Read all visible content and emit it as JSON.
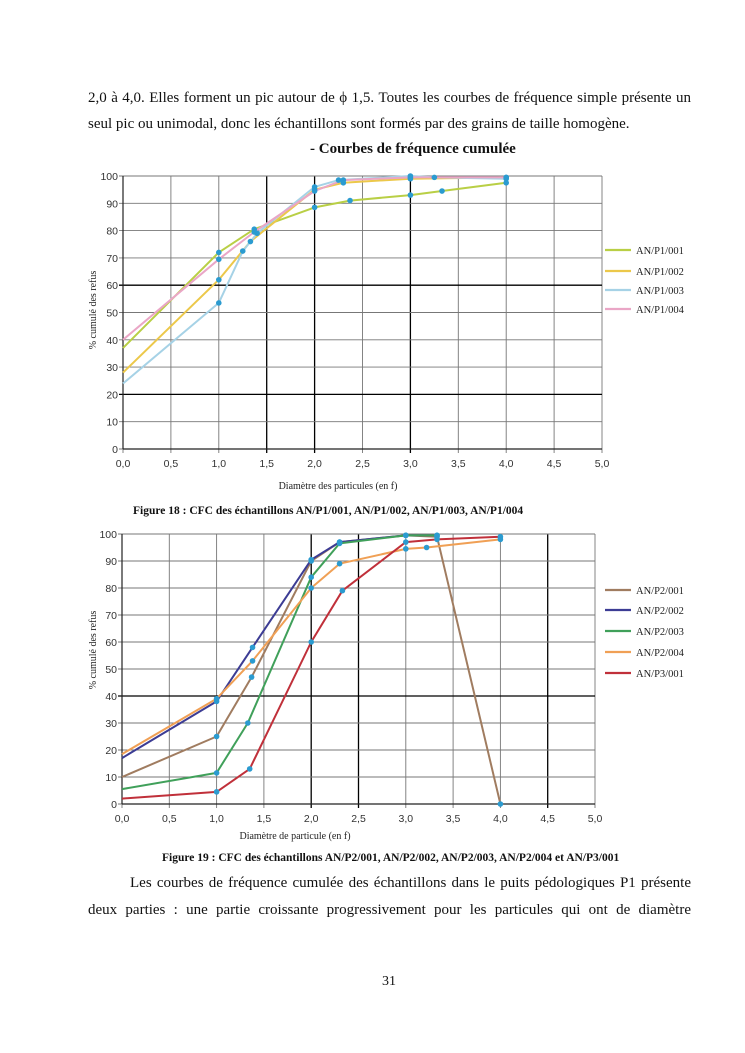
{
  "page": {
    "paragraph_top": [
      "2,0 à 4,0. Elles forment un pic autour de ϕ 1,5. Toutes les courbes de fréquence simple présente un",
      "seul pic ou unimodal,  donc les échantillons sont formés par des grains de taille homogène."
    ],
    "section_heading": "- Courbes de fréquence cumulée",
    "figure18_caption": "Figure 18 : CFC des échantillons AN/P1/001, AN/P1/002, AN/P1/003, AN/P1/004",
    "figure19_caption": "Figure 19 : CFC des échantillons AN/P2/001, AN/P2/002, AN/P2/003, AN/P2/004 et AN/P3/001",
    "paragraph_bottom": [
      "Les courbes de fréquence cumulée des échantillons dans le puits pédologiques P1 présente",
      "deux parties : une partie croissante progressivement pour les particules qui ont de diamètre"
    ],
    "page_number": "31"
  },
  "chart_data": [
    {
      "type": "line",
      "title": "",
      "xlabel": "Diamètre des particules (en f)",
      "ylabel": "% cumulé des refus",
      "xlim": [
        0,
        5
      ],
      "ylim": [
        0,
        100
      ],
      "xticks": [
        "0,0",
        "0,5",
        "1,0",
        "1,5",
        "2,0",
        "2,5",
        "3,0",
        "3,5",
        "4,0",
        "4,5",
        "5,0"
      ],
      "yticks": [
        "0",
        "10",
        "20",
        "30",
        "40",
        "50",
        "60",
        "70",
        "80",
        "90",
        "100"
      ],
      "grid": true,
      "legend": "right",
      "marker_color": "#2b9bd0",
      "series": [
        {
          "name": "AN/P1/001",
          "color": "#b9cf45",
          "x": [
            0,
            1.0,
            1.37,
            2.0,
            2.37,
            3.0,
            3.33,
            4.0
          ],
          "y": [
            37,
            72,
            80.5,
            88.5,
            91,
            93,
            94.5,
            97.5
          ]
        },
        {
          "name": "AN/P1/002",
          "color": "#ecc84a",
          "x": [
            0,
            1.0,
            1.33,
            2.0,
            2.3,
            3.0,
            4.0
          ],
          "y": [
            28,
            62,
            76,
            95,
            97.5,
            99,
            99.5
          ]
        },
        {
          "name": "AN/P1/003",
          "color": "#a6d2e6",
          "x": [
            0,
            1.0,
            1.25,
            1.4,
            2.0,
            2.25,
            3.0,
            3.25,
            4.0
          ],
          "y": [
            24,
            53.5,
            72.5,
            79,
            96,
            98.5,
            100,
            99.5,
            99
          ]
        },
        {
          "name": "AN/P1/004",
          "color": "#eaa6c6",
          "x": [
            0,
            1.0,
            1.37,
            2.0,
            2.3,
            3.0,
            4.0
          ],
          "y": [
            40,
            69.5,
            79.5,
            94.5,
            98.5,
            99.5,
            99.5
          ]
        }
      ]
    },
    {
      "type": "line",
      "title": "",
      "xlabel": "Diamètre de particule (en f)",
      "ylabel": "% cumulé des refus",
      "xlim": [
        0,
        5
      ],
      "ylim": [
        0,
        100
      ],
      "xticks": [
        "0,0",
        "0,5",
        "1,0",
        "1,5",
        "2,0",
        "2,5",
        "3,0",
        "3,5",
        "4,0",
        "4,5",
        "5,0"
      ],
      "yticks": [
        "0",
        "10",
        "20",
        "30",
        "40",
        "50",
        "60",
        "70",
        "80",
        "90",
        "100"
      ],
      "grid": true,
      "legend": "right",
      "marker_color": "#2b9bd0",
      "series": [
        {
          "name": "AN/P2/001",
          "color": "#a07c60",
          "x": [
            0,
            1.0,
            1.37,
            2.0,
            2.3,
            3.0,
            3.33,
            4.0
          ],
          "y": [
            10,
            25,
            47,
            90,
            97,
            99.5,
            99,
            0
          ]
        },
        {
          "name": "AN/P2/002",
          "color": "#3c3c94",
          "x": [
            0,
            1.0,
            1.38,
            2.0,
            2.3,
            3.0,
            3.33
          ],
          "y": [
            17,
            38,
            58,
            90.5,
            97,
            99.5,
            99.5
          ]
        },
        {
          "name": "AN/P2/003",
          "color": "#40a05a",
          "x": [
            0,
            1.0,
            1.33,
            2.0,
            2.3,
            3.0,
            3.33
          ],
          "y": [
            5.5,
            11.5,
            30,
            84,
            96.5,
            99.5,
            99.5
          ]
        },
        {
          "name": "AN/P2/004",
          "color": "#f0a055",
          "x": [
            0,
            1.0,
            1.38,
            2.0,
            2.3,
            3.0,
            3.22,
            4.0
          ],
          "y": [
            18.5,
            39,
            53,
            80,
            89,
            94.5,
            95,
            98
          ]
        },
        {
          "name": "AN/P3/001",
          "color": "#c0303a",
          "x": [
            0,
            1.0,
            1.35,
            2.0,
            2.33,
            3.0,
            3.33,
            4.0
          ],
          "y": [
            2,
            4.5,
            13,
            60,
            79,
            97,
            98,
            99
          ]
        }
      ]
    }
  ]
}
